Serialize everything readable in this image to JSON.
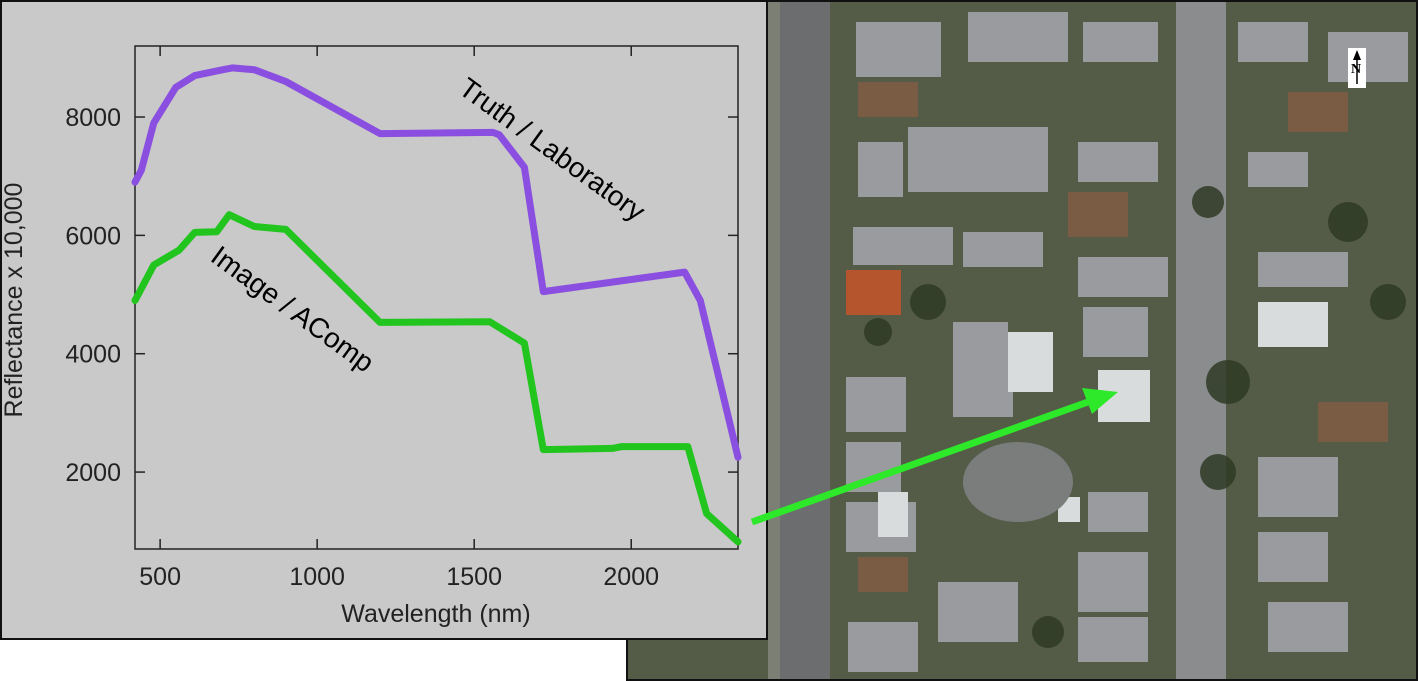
{
  "chart_data": {
    "type": "line",
    "xlabel": "Wavelength (nm)",
    "ylabel": "Reflectance x 10,000",
    "xlim": [
      420,
      2340
    ],
    "ylim": [
      700,
      9200
    ],
    "xticks": [
      500,
      1000,
      1500,
      2000
    ],
    "yticks": [
      2000,
      4000,
      6000,
      8000
    ],
    "grid": false,
    "legend": "none",
    "series": [
      {
        "name": "Truth  / Laboratory",
        "color": "#8a4fe0",
        "x": [
          420,
          440,
          480,
          550,
          610,
          700,
          730,
          800,
          900,
          1200,
          1560,
          1580,
          1660,
          1720,
          2170,
          2220,
          2340
        ],
        "y": [
          6900,
          7100,
          7900,
          8500,
          8700,
          8800,
          8830,
          8800,
          8600,
          7720,
          7740,
          7700,
          7150,
          5050,
          5380,
          4900,
          2250
        ]
      },
      {
        "name": "Image / AComp",
        "color": "#22c41e",
        "x": [
          420,
          440,
          480,
          560,
          610,
          680,
          720,
          800,
          900,
          1200,
          1550,
          1660,
          1720,
          1940,
          1970,
          2180,
          2240,
          2340
        ],
        "y": [
          4900,
          5100,
          5500,
          5750,
          6050,
          6060,
          6350,
          6150,
          6100,
          4530,
          4540,
          4180,
          2380,
          2400,
          2430,
          2430,
          1300,
          820
        ]
      }
    ]
  },
  "aerial": {
    "north_label": "N"
  },
  "colors": {
    "panel_bg": "#c9c9c9",
    "arrow": "#2ee82a"
  }
}
